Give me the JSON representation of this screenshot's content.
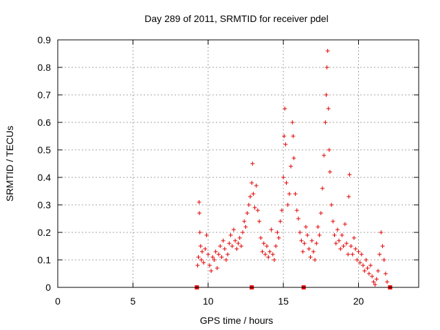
{
  "chart_data": {
    "type": "scatter",
    "title": "Day 289 of 2011, SRMTID for receiver pdel",
    "xlabel": "GPS time / hours",
    "ylabel": "SRMTID / TECUs",
    "xlim": [
      0,
      24
    ],
    "ylim": [
      0,
      0.9
    ],
    "xticks": [
      0,
      5,
      10,
      15,
      20
    ],
    "yticks": [
      0,
      0.1,
      0.2,
      0.3,
      0.4,
      0.5,
      0.6,
      0.7,
      0.8,
      0.9
    ],
    "xtick_labels": [
      "0",
      "5",
      "10",
      "15",
      "20"
    ],
    "ytick_labels": [
      "0",
      "0.1",
      "0.2",
      "0.3",
      "0.4",
      "0.5",
      "0.6",
      "0.7",
      "0.8",
      "0.9"
    ],
    "grid": true,
    "marker": "+",
    "series_color": "#e00000",
    "zero_markers": [
      9.25,
      12.9,
      16.35,
      22.1
    ],
    "series": [
      {
        "name": "SRMTID",
        "points": [
          [
            9.3,
            0.08
          ],
          [
            9.35,
            0.11
          ],
          [
            9.4,
            0.31
          ],
          [
            9.42,
            0.27
          ],
          [
            9.45,
            0.2
          ],
          [
            9.5,
            0.15
          ],
          [
            9.55,
            0.1
          ],
          [
            9.6,
            0.13
          ],
          [
            9.7,
            0.09
          ],
          [
            9.8,
            0.14
          ],
          [
            9.9,
            0.19
          ],
          [
            10.0,
            0.12
          ],
          [
            10.1,
            0.08
          ],
          [
            10.2,
            0.06
          ],
          [
            10.3,
            0.11
          ],
          [
            10.4,
            0.1
          ],
          [
            10.5,
            0.13
          ],
          [
            10.6,
            0.07
          ],
          [
            10.7,
            0.12
          ],
          [
            10.8,
            0.15
          ],
          [
            10.9,
            0.11
          ],
          [
            11.0,
            0.17
          ],
          [
            11.1,
            0.14
          ],
          [
            11.2,
            0.1
          ],
          [
            11.3,
            0.12
          ],
          [
            11.4,
            0.16
          ],
          [
            11.5,
            0.19
          ],
          [
            11.6,
            0.15
          ],
          [
            11.7,
            0.21
          ],
          [
            11.8,
            0.17
          ],
          [
            11.9,
            0.14
          ],
          [
            12.0,
            0.16
          ],
          [
            12.1,
            0.18
          ],
          [
            12.2,
            0.15
          ],
          [
            12.3,
            0.2
          ],
          [
            12.4,
            0.24
          ],
          [
            12.5,
            0.22
          ],
          [
            12.6,
            0.27
          ],
          [
            12.7,
            0.3
          ],
          [
            12.8,
            0.33
          ],
          [
            12.9,
            0.38
          ],
          [
            12.95,
            0.45
          ],
          [
            13.0,
            0.34
          ],
          [
            13.1,
            0.29
          ],
          [
            13.2,
            0.37
          ],
          [
            13.3,
            0.28
          ],
          [
            13.4,
            0.24
          ],
          [
            13.5,
            0.18
          ],
          [
            13.6,
            0.13
          ],
          [
            13.7,
            0.16
          ],
          [
            13.8,
            0.12
          ],
          [
            13.9,
            0.15
          ],
          [
            14.0,
            0.11
          ],
          [
            14.1,
            0.13
          ],
          [
            14.2,
            0.21
          ],
          [
            14.3,
            0.12
          ],
          [
            14.4,
            0.1
          ],
          [
            14.5,
            0.15
          ],
          [
            14.6,
            0.2
          ],
          [
            14.7,
            0.18
          ],
          [
            14.8,
            0.24
          ],
          [
            14.9,
            0.28
          ],
          [
            15.0,
            0.4
          ],
          [
            15.05,
            0.55
          ],
          [
            15.1,
            0.65
          ],
          [
            15.15,
            0.52
          ],
          [
            15.2,
            0.38
          ],
          [
            15.3,
            0.3
          ],
          [
            15.4,
            0.34
          ],
          [
            15.5,
            0.44
          ],
          [
            15.6,
            0.6
          ],
          [
            15.65,
            0.55
          ],
          [
            15.7,
            0.47
          ],
          [
            15.8,
            0.34
          ],
          [
            15.9,
            0.28
          ],
          [
            16.0,
            0.25
          ],
          [
            16.1,
            0.2
          ],
          [
            16.2,
            0.17
          ],
          [
            16.3,
            0.13
          ],
          [
            16.4,
            0.16
          ],
          [
            16.5,
            0.22
          ],
          [
            16.6,
            0.19
          ],
          [
            16.7,
            0.14
          ],
          [
            16.8,
            0.11
          ],
          [
            16.9,
            0.17
          ],
          [
            17.0,
            0.13
          ],
          [
            17.1,
            0.1
          ],
          [
            17.2,
            0.16
          ],
          [
            17.3,
            0.22
          ],
          [
            17.4,
            0.19
          ],
          [
            17.5,
            0.27
          ],
          [
            17.6,
            0.36
          ],
          [
            17.7,
            0.48
          ],
          [
            17.8,
            0.6
          ],
          [
            17.85,
            0.7
          ],
          [
            17.9,
            0.8
          ],
          [
            17.95,
            0.86
          ],
          [
            18.0,
            0.65
          ],
          [
            18.05,
            0.5
          ],
          [
            18.1,
            0.42
          ],
          [
            18.2,
            0.3
          ],
          [
            18.3,
            0.24
          ],
          [
            18.4,
            0.19
          ],
          [
            18.5,
            0.16
          ],
          [
            18.6,
            0.21
          ],
          [
            18.7,
            0.17
          ],
          [
            18.8,
            0.14
          ],
          [
            18.9,
            0.19
          ],
          [
            19.0,
            0.15
          ],
          [
            19.1,
            0.23
          ],
          [
            19.2,
            0.16
          ],
          [
            19.3,
            0.12
          ],
          [
            19.35,
            0.33
          ],
          [
            19.4,
            0.41
          ],
          [
            19.5,
            0.15
          ],
          [
            19.6,
            0.12
          ],
          [
            19.7,
            0.18
          ],
          [
            19.8,
            0.14
          ],
          [
            19.9,
            0.1
          ],
          [
            20.0,
            0.13
          ],
          [
            20.1,
            0.09
          ],
          [
            20.2,
            0.12
          ],
          [
            20.3,
            0.08
          ],
          [
            20.4,
            0.06
          ],
          [
            20.5,
            0.1
          ],
          [
            20.6,
            0.07
          ],
          [
            20.7,
            0.05
          ],
          [
            20.8,
            0.08
          ],
          [
            20.9,
            0.04
          ],
          [
            21.0,
            0.02
          ],
          [
            21.1,
            0.01
          ],
          [
            21.2,
            0.03
          ],
          [
            21.3,
            0.06
          ],
          [
            21.4,
            0.12
          ],
          [
            21.5,
            0.2
          ],
          [
            21.6,
            0.15
          ],
          [
            21.7,
            0.1
          ],
          [
            21.8,
            0.05
          ],
          [
            21.9,
            0.02
          ]
        ]
      }
    ]
  }
}
